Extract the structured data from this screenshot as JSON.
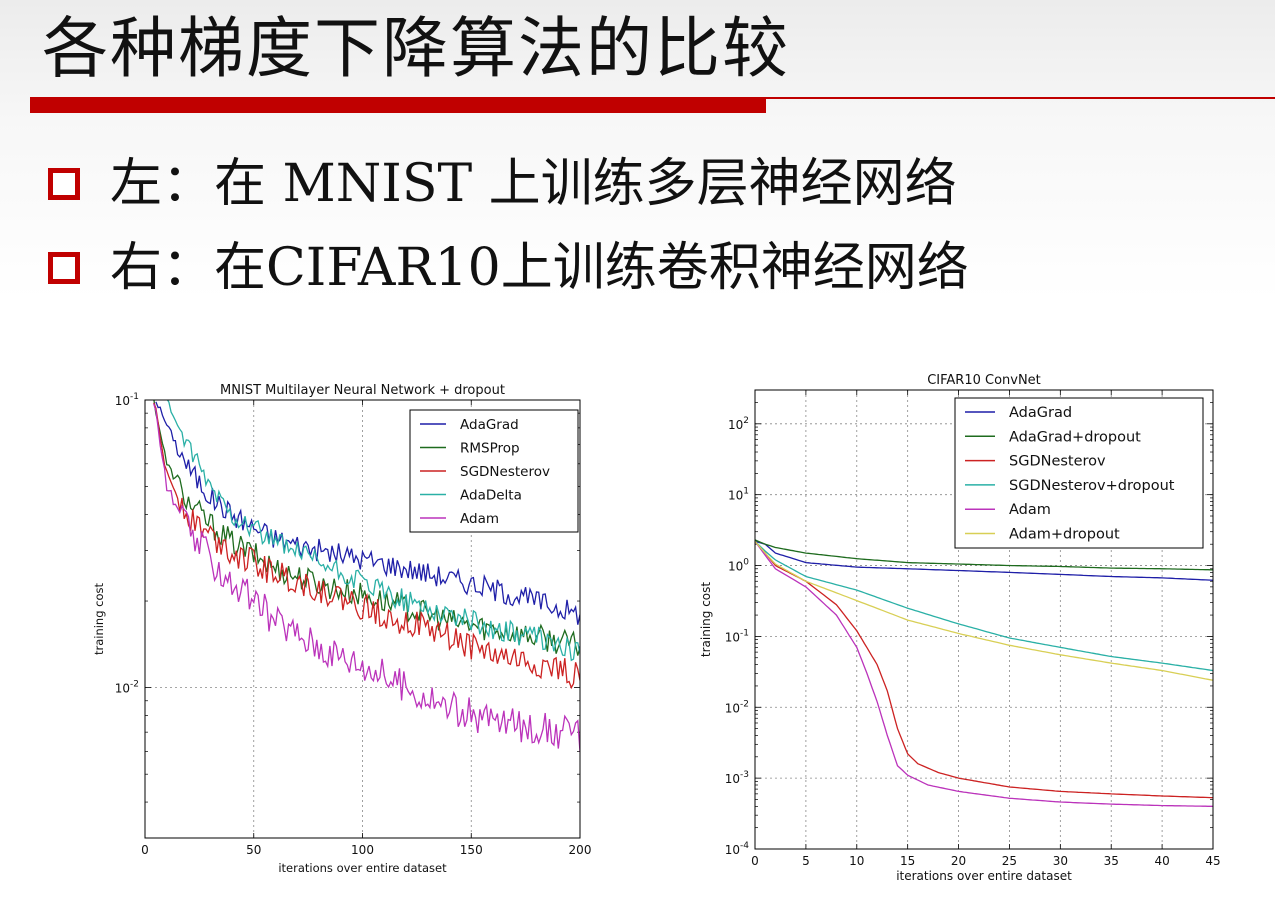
{
  "slide": {
    "title": "各种梯度下降算法的比较",
    "bullets": [
      {
        "text": "左：在 MNIST 上训练多层神经网络"
      },
      {
        "text": "右：在CIFAR10上训练卷积神经网络"
      }
    ]
  },
  "colors": {
    "accent": "#c00000",
    "AdaGrad": "#1f1fa8",
    "RMSProp": "#1e6b1e",
    "SGDNesterov": "#cc2222",
    "AdaDelta": "#2ab0a6",
    "Adam": "#bb33bb",
    "Adam+dropout": "#d8cf55"
  },
  "chart_data": [
    {
      "type": "line",
      "title": "MNIST Multilayer Neural Network + dropout",
      "xlabel": "iterations over entire dataset",
      "ylabel": "training cost",
      "xlim": [
        0,
        200
      ],
      "ylim": [
        0.003,
        0.1
      ],
      "yscale": "log",
      "xticks": [
        0,
        50,
        100,
        150,
        200
      ],
      "yticks": [
        {
          "value": 0.1,
          "base": "10",
          "exp": "-1"
        },
        {
          "value": 0.01,
          "base": "10",
          "exp": "-2"
        }
      ],
      "grid": true,
      "legend": "top-right",
      "series": [
        {
          "name": "AdaGrad",
          "color": "#1f1fa8",
          "noise": 0.04,
          "x": [
            5,
            10,
            20,
            30,
            40,
            50,
            60,
            80,
            100,
            120,
            140,
            160,
            180,
            200
          ],
          "y": [
            0.1,
            0.082,
            0.058,
            0.046,
            0.04,
            0.036,
            0.033,
            0.03,
            0.028,
            0.026,
            0.024,
            0.022,
            0.02,
            0.018
          ]
        },
        {
          "name": "RMSProp",
          "color": "#1e6b1e",
          "noise": 0.045,
          "x": [
            4,
            10,
            20,
            30,
            40,
            50,
            60,
            80,
            100,
            120,
            140,
            160,
            180,
            200
          ],
          "y": [
            0.1,
            0.06,
            0.044,
            0.037,
            0.032,
            0.029,
            0.026,
            0.023,
            0.021,
            0.019,
            0.017,
            0.016,
            0.015,
            0.014
          ]
        },
        {
          "name": "SGDNesterov",
          "color": "#cc2222",
          "noise": 0.05,
          "x": [
            4,
            10,
            20,
            30,
            40,
            50,
            60,
            80,
            100,
            120,
            140,
            160,
            180,
            200
          ],
          "y": [
            0.1,
            0.055,
            0.04,
            0.034,
            0.03,
            0.027,
            0.025,
            0.022,
            0.019,
            0.017,
            0.015,
            0.013,
            0.012,
            0.011
          ]
        },
        {
          "name": "AdaDelta",
          "color": "#2ab0a6",
          "noise": 0.04,
          "x": [
            10,
            20,
            30,
            40,
            50,
            60,
            80,
            100,
            120,
            140,
            160,
            180,
            200
          ],
          "y": [
            0.1,
            0.067,
            0.05,
            0.04,
            0.036,
            0.032,
            0.027,
            0.023,
            0.02,
            0.018,
            0.016,
            0.015,
            0.013
          ]
        },
        {
          "name": "Adam",
          "color": "#bb33bb",
          "noise": 0.06,
          "x": [
            4,
            10,
            20,
            30,
            40,
            50,
            60,
            80,
            100,
            120,
            140,
            160,
            180,
            200
          ],
          "y": [
            0.1,
            0.05,
            0.035,
            0.028,
            0.023,
            0.02,
            0.017,
            0.014,
            0.012,
            0.01,
            0.0085,
            0.0077,
            0.0072,
            0.0068
          ]
        }
      ]
    },
    {
      "type": "line",
      "title": "CIFAR10 ConvNet",
      "xlabel": "iterations over entire dataset",
      "ylabel": "training cost",
      "xlim": [
        0,
        45
      ],
      "ylim": [
        0.0001,
        300
      ],
      "yscale": "log",
      "xticks": [
        0,
        5,
        10,
        15,
        20,
        25,
        30,
        35,
        40,
        45
      ],
      "yticks": [
        {
          "value": 100,
          "base": "10",
          "exp": "2"
        },
        {
          "value": 10,
          "base": "10",
          "exp": "1"
        },
        {
          "value": 1,
          "base": "10",
          "exp": "0"
        },
        {
          "value": 0.1,
          "base": "10",
          "exp": "-1"
        },
        {
          "value": 0.01,
          "base": "10",
          "exp": "-2"
        },
        {
          "value": 0.001,
          "base": "10",
          "exp": "-3"
        },
        {
          "value": 0.0001,
          "base": "10",
          "exp": "-4"
        }
      ],
      "grid": true,
      "legend": "top-right",
      "series": [
        {
          "name": "AdaGrad",
          "color": "#1f1fa8",
          "noise": 0,
          "x": [
            0,
            1,
            2,
            5,
            10,
            15,
            20,
            25,
            30,
            35,
            40,
            45
          ],
          "y": [
            2.2,
            2.0,
            1.5,
            1.1,
            0.95,
            0.9,
            0.85,
            0.8,
            0.75,
            0.7,
            0.67,
            0.62
          ]
        },
        {
          "name": "AdaGrad+dropout",
          "color": "#1e6b1e",
          "noise": 0,
          "x": [
            0,
            1,
            2,
            5,
            10,
            15,
            20,
            25,
            30,
            35,
            40,
            45
          ],
          "y": [
            2.3,
            2.0,
            1.8,
            1.5,
            1.25,
            1.1,
            1.05,
            1.0,
            0.97,
            0.92,
            0.9,
            0.87
          ]
        },
        {
          "name": "SGDNesterov",
          "color": "#cc2222",
          "noise": 0,
          "x": [
            0,
            1,
            2,
            5,
            8,
            10,
            12,
            13,
            14,
            15,
            16,
            18,
            20,
            25,
            30,
            35,
            40,
            45
          ],
          "y": [
            2.2,
            1.5,
            1.0,
            0.6,
            0.28,
            0.12,
            0.04,
            0.017,
            0.005,
            0.0022,
            0.0016,
            0.0012,
            0.001,
            0.00075,
            0.00065,
            0.0006,
            0.00056,
            0.00053
          ]
        },
        {
          "name": "SGDNesterov+dropout",
          "color": "#2ab0a6",
          "noise": 0,
          "x": [
            0,
            1,
            2,
            5,
            10,
            15,
            20,
            25,
            30,
            35,
            40,
            45
          ],
          "y": [
            2.2,
            1.6,
            1.2,
            0.7,
            0.45,
            0.25,
            0.15,
            0.095,
            0.07,
            0.052,
            0.042,
            0.033
          ]
        },
        {
          "name": "Adam",
          "color": "#bb33bb",
          "noise": 0,
          "x": [
            0,
            1,
            2,
            5,
            8,
            10,
            11,
            12,
            13,
            14,
            15,
            17,
            20,
            25,
            30,
            35,
            40,
            45
          ],
          "y": [
            2.2,
            1.4,
            0.9,
            0.5,
            0.2,
            0.07,
            0.03,
            0.012,
            0.004,
            0.0015,
            0.0011,
            0.0008,
            0.00065,
            0.00052,
            0.00046,
            0.00043,
            0.00041,
            0.0004
          ]
        },
        {
          "name": "Adam+dropout",
          "color": "#d8cf55",
          "noise": 0,
          "x": [
            0,
            1,
            2,
            5,
            10,
            15,
            20,
            25,
            30,
            35,
            40,
            45
          ],
          "y": [
            2.2,
            1.5,
            1.05,
            0.6,
            0.32,
            0.17,
            0.11,
            0.075,
            0.055,
            0.042,
            0.033,
            0.024
          ]
        }
      ]
    }
  ]
}
